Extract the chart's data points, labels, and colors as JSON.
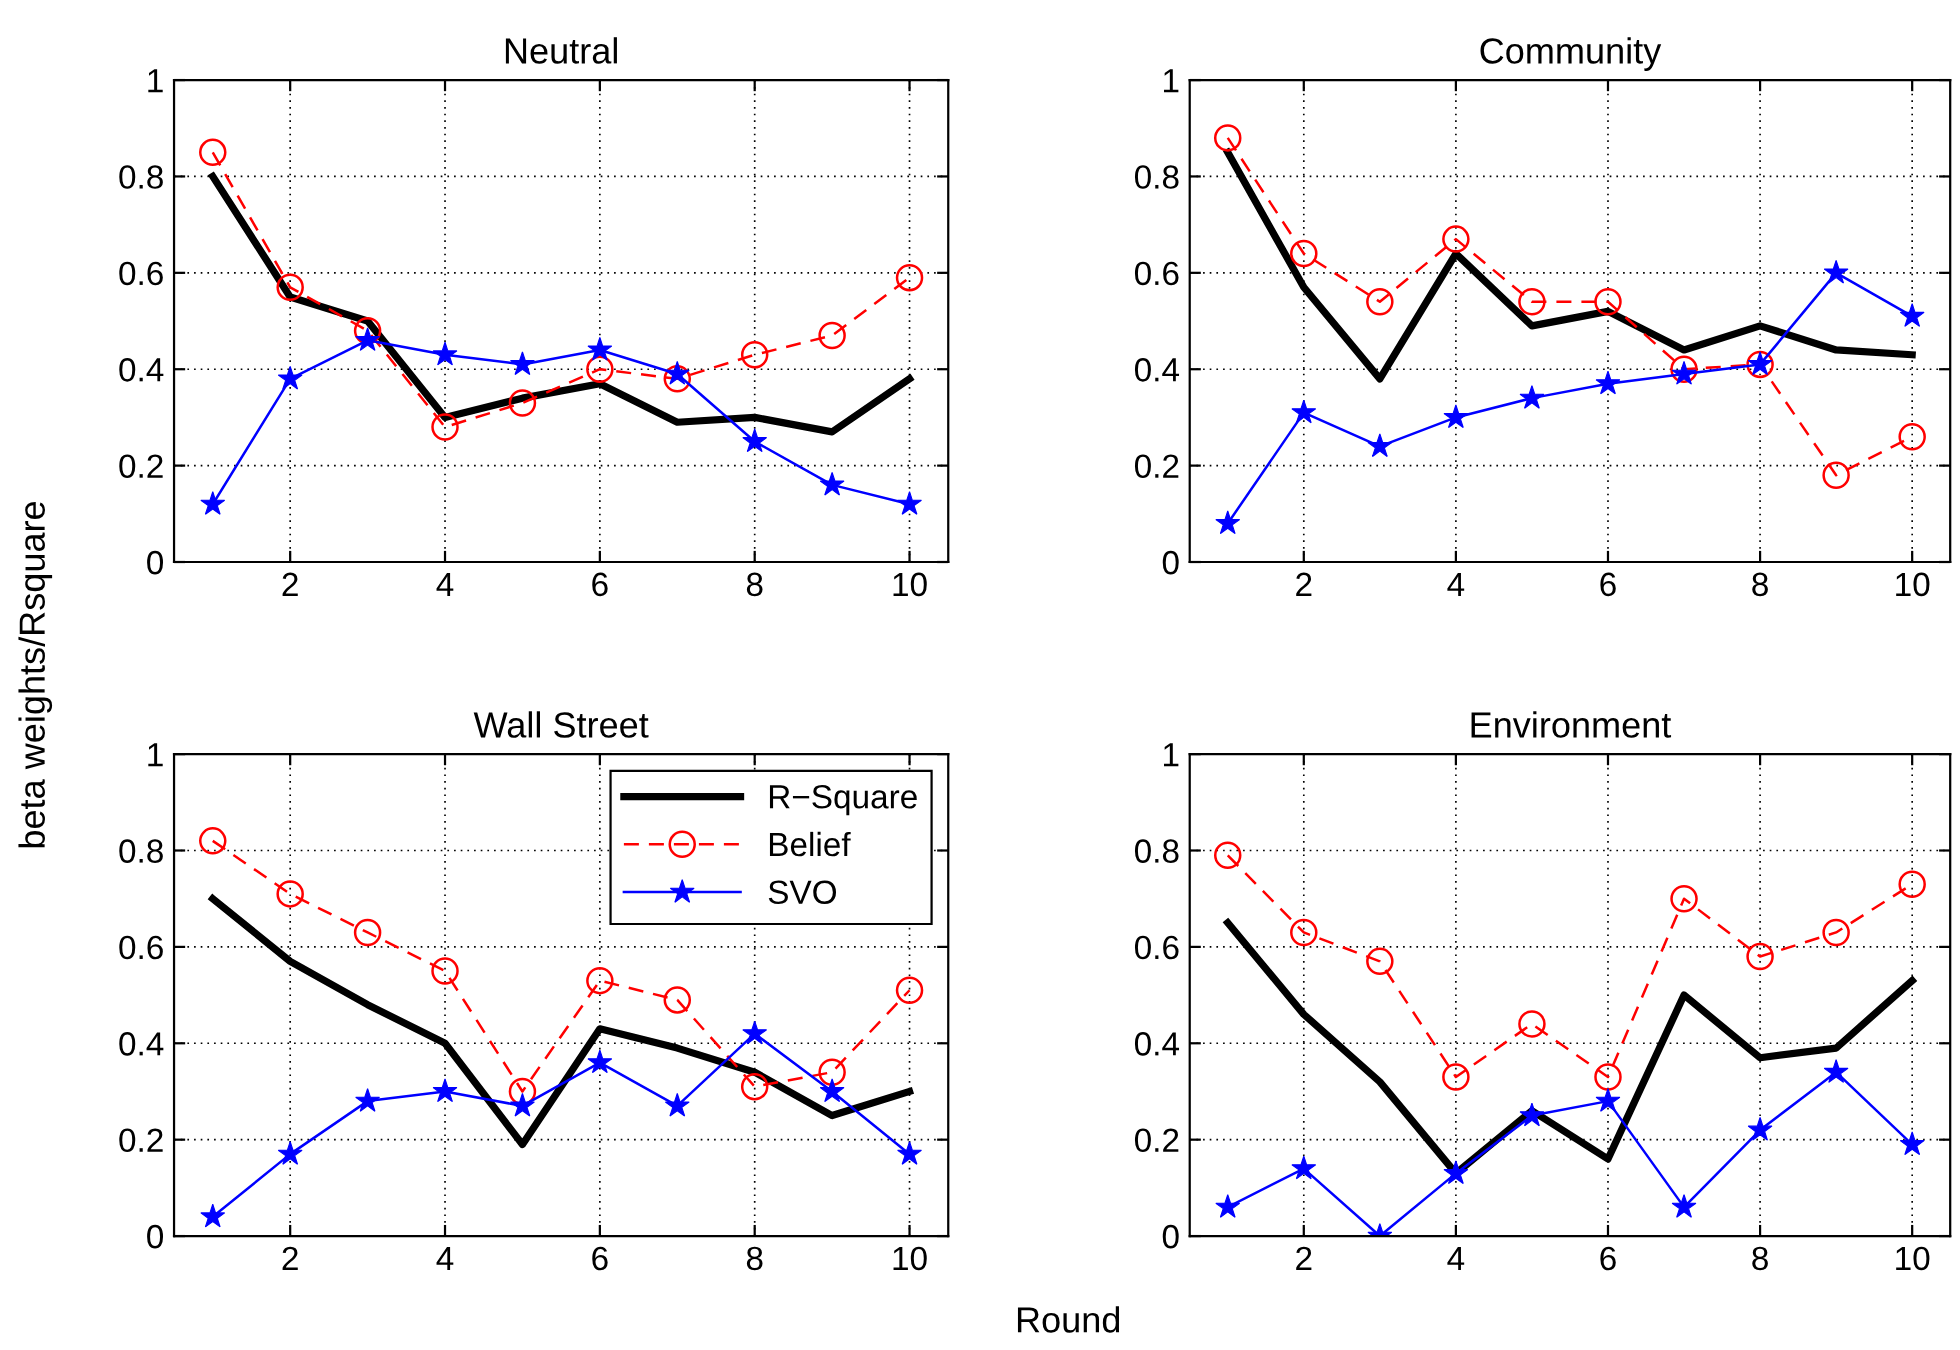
{
  "chart_data": [
    {
      "type": "line",
      "title": "Neutral",
      "ylabel": "beta weights/Rsquare",
      "x": [
        1,
        2,
        3,
        4,
        5,
        6,
        7,
        8,
        9,
        10
      ],
      "xlim": [
        0.5,
        10.5
      ],
      "ylim": [
        0,
        1
      ],
      "xticks": [
        2,
        4,
        6,
        8,
        10
      ],
      "yticks": [
        0,
        0.2,
        0.4,
        0.6,
        0.8,
        1
      ],
      "grid": true,
      "legend": false,
      "series": [
        {
          "color": "#000000",
          "marker": "none",
          "line_style": "solid",
          "values": [
            0.8,
            0.55,
            0.5,
            0.3,
            0.34,
            0.37,
            0.29,
            0.3,
            0.27,
            0.38
          ]
        },
        {
          "color": "#ff0000",
          "marker": "circle",
          "line_style": "dashed",
          "values": [
            0.85,
            0.57,
            0.48,
            0.28,
            0.33,
            0.4,
            0.38,
            0.43,
            0.47,
            0.59
          ]
        },
        {
          "color": "#0000ff",
          "marker": "star",
          "line_style": "solid",
          "values": [
            0.12,
            0.38,
            0.46,
            0.43,
            0.41,
            0.44,
            0.39,
            0.25,
            0.16,
            0.12
          ]
        }
      ]
    },
    {
      "type": "line",
      "title": "Community",
      "x": [
        1,
        2,
        3,
        4,
        5,
        6,
        7,
        8,
        9,
        10
      ],
      "xlim": [
        0.5,
        10.5
      ],
      "ylim": [
        0,
        1
      ],
      "xticks": [
        2,
        4,
        6,
        8,
        10
      ],
      "yticks": [
        0,
        0.2,
        0.4,
        0.6,
        0.8,
        1
      ],
      "grid": true,
      "legend": false,
      "series": [
        {
          "color": "#000000",
          "marker": "none",
          "line_style": "solid",
          "values": [
            0.85,
            0.57,
            0.38,
            0.64,
            0.49,
            0.52,
            0.44,
            0.49,
            0.44,
            0.43
          ]
        },
        {
          "color": "#ff0000",
          "marker": "circle",
          "line_style": "dashed",
          "values": [
            0.88,
            0.64,
            0.54,
            0.67,
            0.54,
            0.54,
            0.4,
            0.41,
            0.18,
            0.26
          ]
        },
        {
          "color": "#0000ff",
          "marker": "star",
          "line_style": "solid",
          "values": [
            0.08,
            0.31,
            0.24,
            0.3,
            0.34,
            0.37,
            0.39,
            0.41,
            0.6,
            0.51
          ]
        }
      ]
    },
    {
      "type": "line",
      "title": "Wall Street",
      "x": [
        1,
        2,
        3,
        4,
        5,
        6,
        7,
        8,
        9,
        10
      ],
      "xlim": [
        0.5,
        10.5
      ],
      "ylim": [
        0,
        1
      ],
      "xticks": [
        2,
        4,
        6,
        8,
        10
      ],
      "yticks": [
        0,
        0.2,
        0.4,
        0.6,
        0.8,
        1
      ],
      "grid": true,
      "legend": "top right",
      "series": [
        {
          "name": "R−Square",
          "color": "#000000",
          "marker": "none",
          "line_style": "solid",
          "values": [
            0.7,
            0.57,
            0.48,
            0.4,
            0.19,
            0.43,
            0.39,
            0.34,
            0.25,
            0.3
          ]
        },
        {
          "name": "Belief",
          "color": "#ff0000",
          "marker": "circle",
          "line_style": "dashed",
          "values": [
            0.82,
            0.71,
            0.63,
            0.55,
            0.3,
            0.53,
            0.49,
            0.31,
            0.34,
            0.51
          ]
        },
        {
          "name": "SVO",
          "color": "#0000ff",
          "marker": "star",
          "line_style": "solid",
          "values": [
            0.04,
            0.17,
            0.28,
            0.3,
            0.27,
            0.36,
            0.27,
            0.42,
            0.3,
            0.17
          ]
        }
      ]
    },
    {
      "type": "line",
      "title": "Environment",
      "xlabel": "Round",
      "x": [
        1,
        2,
        3,
        4,
        5,
        6,
        7,
        8,
        9,
        10
      ],
      "xlim": [
        0.5,
        10.5
      ],
      "ylim": [
        0,
        1
      ],
      "xticks": [
        2,
        4,
        6,
        8,
        10
      ],
      "yticks": [
        0,
        0.2,
        0.4,
        0.6,
        0.8,
        1
      ],
      "grid": true,
      "legend": false,
      "series": [
        {
          "color": "#000000",
          "marker": "none",
          "line_style": "solid",
          "values": [
            0.65,
            0.46,
            0.32,
            0.13,
            0.26,
            0.16,
            0.5,
            0.37,
            0.39,
            0.53
          ]
        },
        {
          "color": "#ff0000",
          "marker": "circle",
          "line_style": "dashed",
          "values": [
            0.79,
            0.63,
            0.57,
            0.33,
            0.44,
            0.33,
            0.7,
            0.58,
            0.63,
            0.73
          ]
        },
        {
          "color": "#0000ff",
          "marker": "star",
          "line_style": "solid",
          "values": [
            0.06,
            0.14,
            0.0,
            0.13,
            0.25,
            0.28,
            0.06,
            0.22,
            0.34,
            0.19
          ]
        }
      ]
    }
  ]
}
